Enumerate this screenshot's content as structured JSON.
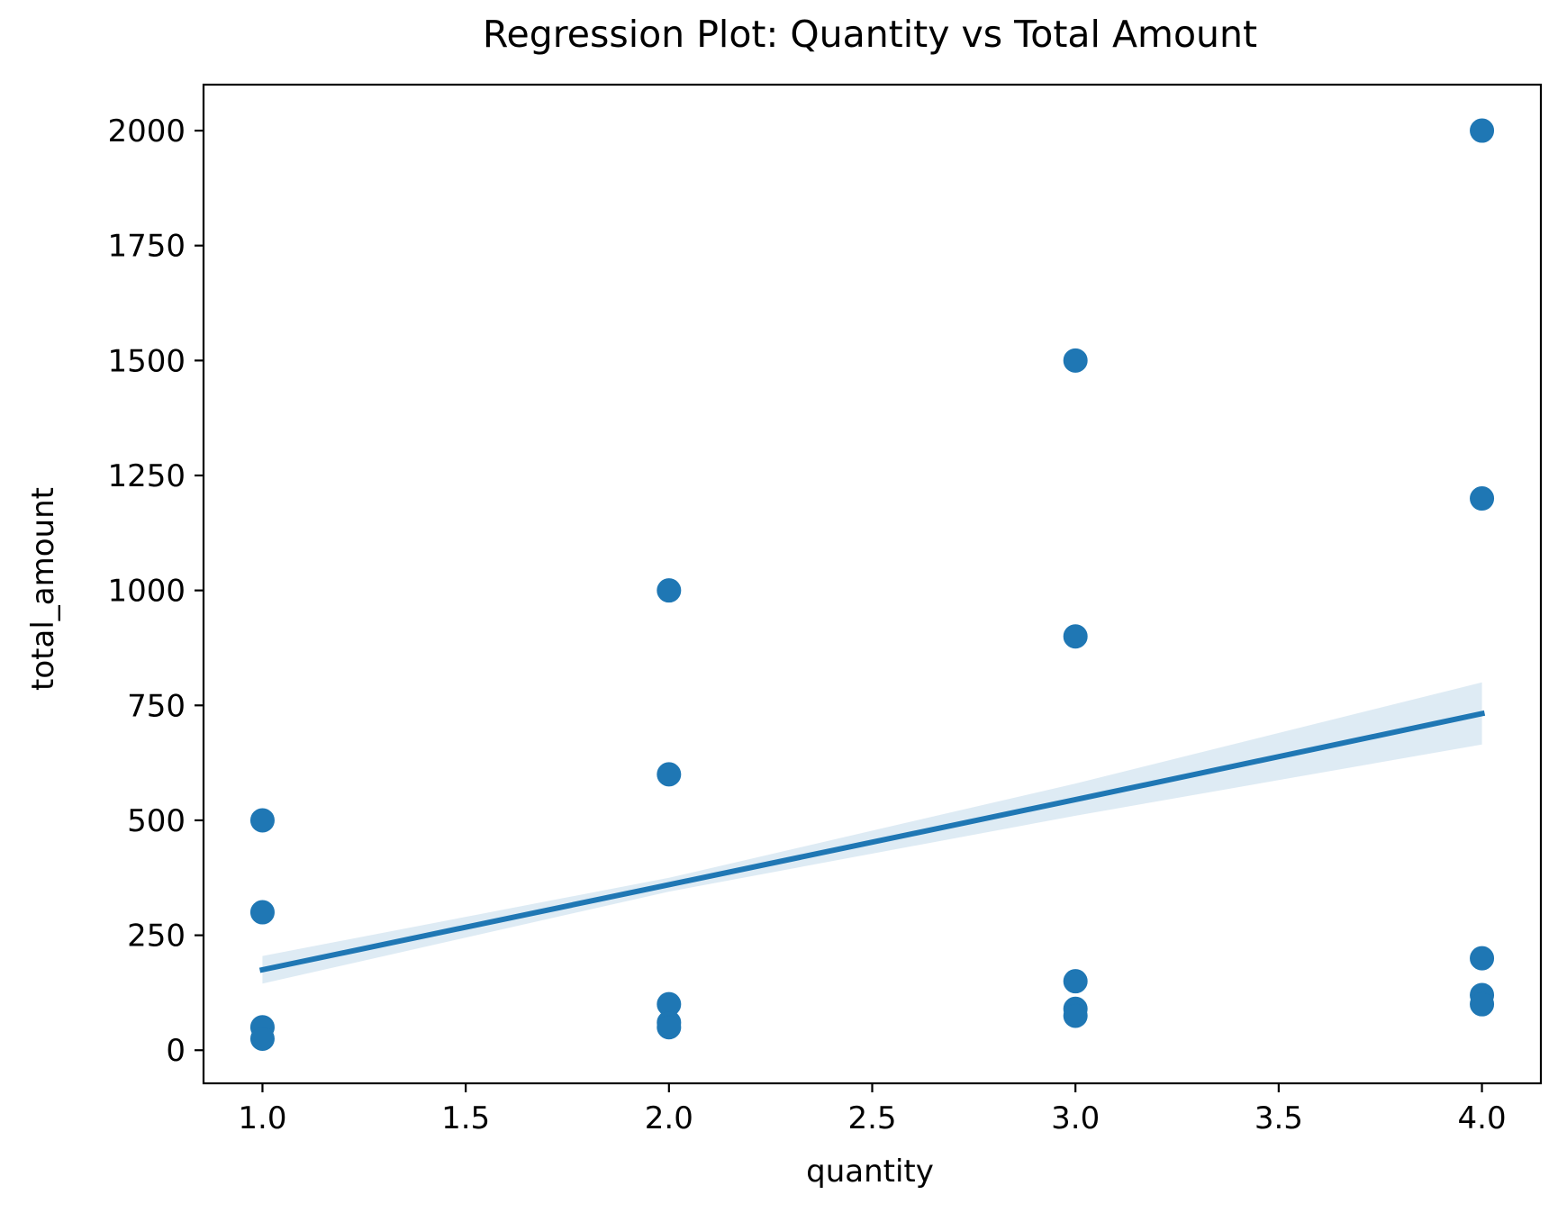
{
  "chart_data": {
    "type": "scatter",
    "title": "Regression Plot: Quantity vs Total Amount",
    "xlabel": "quantity",
    "ylabel": "total_amount",
    "xlim": [
      0.855,
      4.145
    ],
    "ylim": [
      -72,
      2100
    ],
    "xticks": [
      1.0,
      1.5,
      2.0,
      2.5,
      3.0,
      3.5,
      4.0
    ],
    "xtick_labels": [
      "1.0",
      "1.5",
      "2.0",
      "2.5",
      "3.0",
      "3.5",
      "4.0"
    ],
    "yticks": [
      0,
      250,
      500,
      750,
      1000,
      1250,
      1500,
      1750,
      2000
    ],
    "ytick_labels": [
      "0",
      "250",
      "500",
      "750",
      "1000",
      "1250",
      "1500",
      "1750",
      "2000"
    ],
    "grid": false,
    "series": [
      {
        "kind": "points",
        "color": "#1f77b4",
        "points": [
          {
            "x": 1,
            "y": 500
          },
          {
            "x": 1,
            "y": 300
          },
          {
            "x": 1,
            "y": 50
          },
          {
            "x": 1,
            "y": 25
          },
          {
            "x": 2,
            "y": 1000
          },
          {
            "x": 2,
            "y": 600
          },
          {
            "x": 2,
            "y": 100
          },
          {
            "x": 2,
            "y": 60
          },
          {
            "x": 2,
            "y": 50
          },
          {
            "x": 3,
            "y": 1500
          },
          {
            "x": 3,
            "y": 900
          },
          {
            "x": 3,
            "y": 150
          },
          {
            "x": 3,
            "y": 90
          },
          {
            "x": 3,
            "y": 75
          },
          {
            "x": 4,
            "y": 2000
          },
          {
            "x": 4,
            "y": 1200
          },
          {
            "x": 4,
            "y": 200
          },
          {
            "x": 4,
            "y": 120
          },
          {
            "x": 4,
            "y": 100
          }
        ]
      },
      {
        "kind": "regression_line",
        "color": "#1f77b4",
        "x": [
          1,
          2,
          3,
          4
        ],
        "y": [
          175,
          360,
          545,
          732
        ]
      },
      {
        "kind": "confidence_band",
        "color": "#1f77b4",
        "x": [
          1,
          2,
          3,
          4
        ],
        "y_lower": [
          145,
          345,
          510,
          665
        ],
        "y_upper": [
          205,
          375,
          580,
          800
        ]
      }
    ]
  }
}
